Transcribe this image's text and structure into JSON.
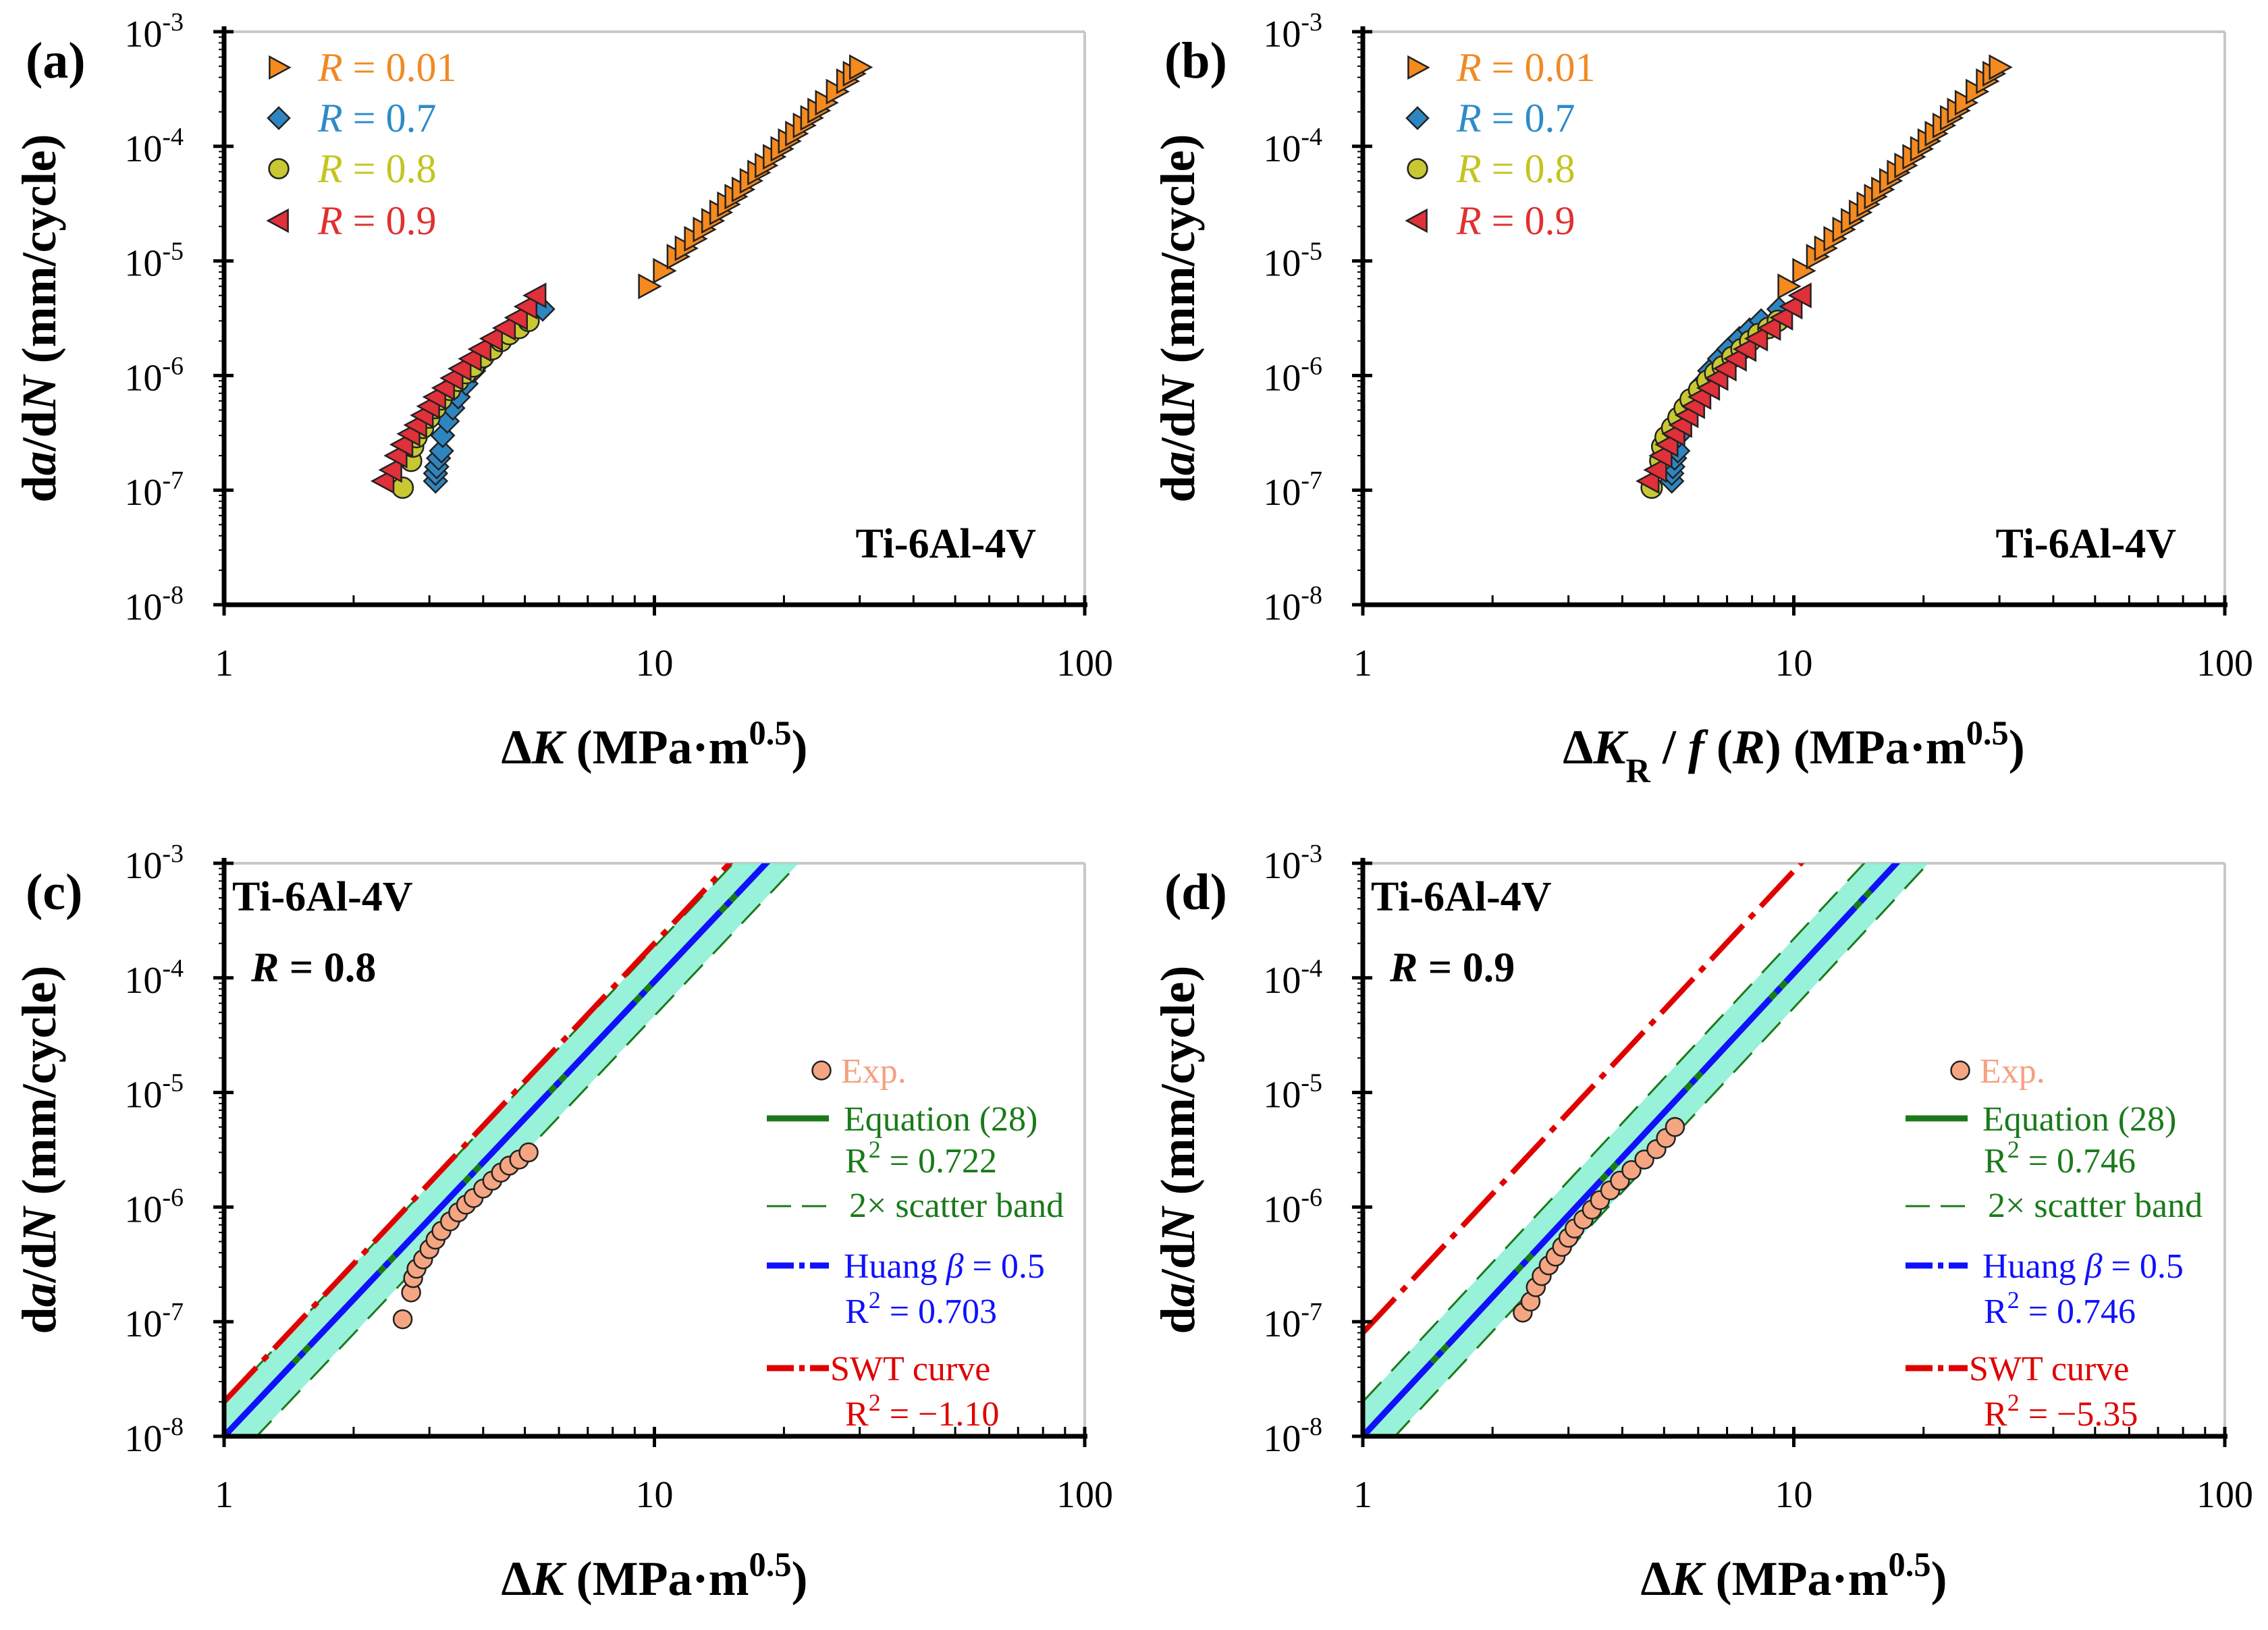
{
  "colors": {
    "r001": "#f58a1f",
    "r07": "#2e86c1",
    "r08": "#c8c832",
    "r09": "#e0303a",
    "r001_text": "#f08a24",
    "r07_text": "#2e8bc8",
    "r08_text": "#c4c420",
    "r09_text": "#e03030",
    "exp_fill": "#f5a582",
    "exp_text": "#f5a080",
    "eq28": "#1a7a1a",
    "huang": "#1010ff",
    "swt": "#e00000",
    "band": "#86eed2"
  },
  "chart_data": [
    {
      "id": "a",
      "type": "scatter",
      "panel_label": "(a)",
      "material": "Ti-6Al-4V",
      "xscale": "log",
      "yscale": "log",
      "xlim": [
        1,
        100
      ],
      "ylim": [
        1e-08,
        0.001
      ],
      "x_ticks": [
        "1",
        "10",
        "100"
      ],
      "y_tick_exponents": [
        -8,
        -7,
        -6,
        -5,
        -4,
        -3
      ],
      "xlabel": [
        {
          "t": "Δ"
        },
        {
          "t": "K",
          "i": true
        },
        {
          "t": " (MPa·m"
        },
        {
          "t": "0.5",
          "sup": true
        },
        {
          "t": ")"
        }
      ],
      "ylabel": [
        {
          "t": "d"
        },
        {
          "t": "a",
          "i": true
        },
        {
          "t": "/d"
        },
        {
          "t": "N",
          "i": true
        },
        {
          "t": " (mm/cycle)"
        }
      ],
      "legend": [
        {
          "marker": "triangle-right",
          "color": "r001",
          "text_color": "r001_text",
          "var": "R",
          "label": " = 0.01"
        },
        {
          "marker": "diamond",
          "color": "r07",
          "text_color": "r07_text",
          "var": "R",
          "label": " = 0.7"
        },
        {
          "marker": "circle",
          "color": "r08",
          "text_color": "r08_text",
          "var": "R",
          "label": " = 0.8"
        },
        {
          "marker": "triangle-left",
          "color": "r09",
          "text_color": "r09_text",
          "var": "R",
          "label": " = 0.9"
        }
      ],
      "series": [
        {
          "name": "R = 0.01",
          "marker": "triangle-right",
          "color": "r001",
          "x": [
            9.7,
            10.5,
            11.3,
            11.8,
            12.4,
            13.0,
            13.6,
            14.2,
            14.8,
            15.4,
            16.0,
            16.7,
            17.4,
            18.1,
            18.9,
            19.7,
            20.5,
            21.3,
            22.2,
            23.1,
            24.0,
            25.0,
            26.5,
            28.0,
            29.0,
            30.0
          ],
          "y": [
            6e-06,
            8.2e-06,
            1.09e-05,
            1.29e-05,
            1.56e-05,
            1.88e-05,
            2.24e-05,
            2.65e-05,
            3.12e-05,
            3.64e-05,
            4.2e-05,
            5e-05,
            5.9e-05,
            6.8e-05,
            8.1e-05,
            9.5e-05,
            0.000111,
            0.000129,
            0.000152,
            0.000177,
            0.000205,
            0.00024,
            0.0003,
            0.00037,
            0.00043,
            0.00049
          ]
        },
        {
          "name": "R = 0.7",
          "marker": "diamond",
          "color": "r07",
          "x": [
            3.1,
            3.1,
            3.12,
            3.15,
            3.2,
            3.22,
            3.3,
            3.4,
            3.5,
            3.65,
            3.8,
            4.0,
            4.2,
            4.45,
            4.7,
            5.0,
            5.5
          ],
          "y": [
            1.2e-07,
            1.4e-07,
            1.6e-07,
            1.9e-07,
            2.2e-07,
            3e-07,
            4e-07,
            5.2e-07,
            6.5e-07,
            8.5e-07,
            1.1e-06,
            1.4e-06,
            1.7e-06,
            2.1e-06,
            2.5e-06,
            3e-06,
            3.8e-06
          ]
        },
        {
          "name": "R = 0.8",
          "marker": "circle",
          "color": "r08",
          "x": [
            2.6,
            2.72,
            2.75,
            2.8,
            2.9,
            3.0,
            3.1,
            3.2,
            3.35,
            3.5,
            3.65,
            3.8,
            4.0,
            4.2,
            4.4,
            4.6,
            4.85,
            5.1
          ],
          "y": [
            1.05e-07,
            1.8e-07,
            2.4e-07,
            2.9e-07,
            3.5e-07,
            4.3e-07,
            5.2e-07,
            6.2e-07,
            7.5e-07,
            9e-07,
            1.05e-06,
            1.2e-06,
            1.45e-06,
            1.7e-06,
            2e-06,
            2.3e-06,
            2.6e-06,
            3e-06
          ]
        },
        {
          "name": "R = 0.9",
          "marker": "triangle-left",
          "color": "r09",
          "x": [
            2.35,
            2.45,
            2.52,
            2.6,
            2.7,
            2.8,
            2.9,
            3.0,
            3.1,
            3.25,
            3.4,
            3.55,
            3.75,
            3.95,
            4.2,
            4.5,
            4.8,
            5.05,
            5.3
          ],
          "y": [
            1.2e-07,
            1.5e-07,
            2e-07,
            2.5e-07,
            3.1e-07,
            3.7e-07,
            4.5e-07,
            5.4e-07,
            6.5e-07,
            7.8e-07,
            9.5e-07,
            1.15e-06,
            1.4e-06,
            1.7e-06,
            2.1e-06,
            2.6e-06,
            3.2e-06,
            4e-06,
            5e-06
          ]
        }
      ]
    },
    {
      "id": "b",
      "type": "scatter",
      "panel_label": "(b)",
      "material": "Ti-6Al-4V",
      "xscale": "log",
      "yscale": "log",
      "xlim": [
        1,
        100
      ],
      "ylim": [
        1e-08,
        0.001
      ],
      "x_ticks": [
        "1",
        "10",
        "100"
      ],
      "y_tick_exponents": [
        -8,
        -7,
        -6,
        -5,
        -4,
        -3
      ],
      "xlabel": [
        {
          "t": "Δ"
        },
        {
          "t": "K",
          "i": true
        },
        {
          "t": "R",
          "sub": true
        },
        {
          "t": " / "
        },
        {
          "t": "f",
          "i": true
        },
        {
          "t": " ("
        },
        {
          "t": "R",
          "i": true
        },
        {
          "t": ") (MPa·m"
        },
        {
          "t": "0.5",
          "sup": true
        },
        {
          "t": ")"
        }
      ],
      "ylabel": [
        {
          "t": "d"
        },
        {
          "t": "a",
          "i": true
        },
        {
          "t": "/d"
        },
        {
          "t": "N",
          "i": true
        },
        {
          "t": " (mm/cycle)"
        }
      ],
      "legend": [
        {
          "marker": "triangle-right",
          "color": "r001",
          "text_color": "r001_text",
          "var": "R",
          "label": " = 0.01"
        },
        {
          "marker": "diamond",
          "color": "r07",
          "text_color": "r07_text",
          "var": "R",
          "label": " = 0.7"
        },
        {
          "marker": "circle",
          "color": "r08",
          "text_color": "r08_text",
          "var": "R",
          "label": " = 0.8"
        },
        {
          "marker": "triangle-left",
          "color": "r09",
          "text_color": "r09_text",
          "var": "R",
          "label": " = 0.9"
        }
      ],
      "series": [
        {
          "name": "R = 0.01",
          "marker": "triangle-right",
          "color": "r001",
          "x": [
            9.7,
            10.5,
            11.3,
            11.8,
            12.4,
            13.0,
            13.6,
            14.2,
            14.8,
            15.4,
            16.0,
            16.7,
            17.4,
            18.1,
            18.9,
            19.7,
            20.5,
            21.3,
            22.2,
            23.1,
            24.0,
            25.0,
            26.5,
            28.0,
            29.0,
            30.0
          ],
          "y": [
            6e-06,
            8.2e-06,
            1.09e-05,
            1.29e-05,
            1.56e-05,
            1.88e-05,
            2.24e-05,
            2.65e-05,
            3.12e-05,
            3.64e-05,
            4.2e-05,
            5e-05,
            5.9e-05,
            6.8e-05,
            8.1e-05,
            9.5e-05,
            0.000111,
            0.000129,
            0.000152,
            0.000177,
            0.000205,
            0.00024,
            0.0003,
            0.00037,
            0.00043,
            0.00049
          ]
        },
        {
          "name": "R = 0.7",
          "marker": "diamond",
          "color": "r07",
          "x": [
            5.21,
            5.21,
            5.24,
            5.29,
            5.38,
            5.41,
            5.54,
            5.71,
            5.88,
            6.13,
            6.38,
            6.72,
            7.06,
            7.48,
            7.9,
            8.4,
            9.24
          ],
          "y": [
            1.2e-07,
            1.4e-07,
            1.6e-07,
            1.9e-07,
            2.2e-07,
            3e-07,
            4e-07,
            5.2e-07,
            6.5e-07,
            8.5e-07,
            1.1e-06,
            1.4e-06,
            1.7e-06,
            2.1e-06,
            2.5e-06,
            3e-06,
            3.8e-06
          ]
        },
        {
          "name": "R = 0.8",
          "marker": "circle",
          "color": "r08",
          "x": [
            4.68,
            4.9,
            4.95,
            5.04,
            5.22,
            5.4,
            5.58,
            5.76,
            6.03,
            6.3,
            6.57,
            6.84,
            7.2,
            7.56,
            7.92,
            8.28,
            8.73,
            9.18
          ],
          "y": [
            1.05e-07,
            1.8e-07,
            2.4e-07,
            2.9e-07,
            3.5e-07,
            4.3e-07,
            5.2e-07,
            6.2e-07,
            7.5e-07,
            9e-07,
            1.05e-06,
            1.2e-06,
            1.45e-06,
            1.7e-06,
            2e-06,
            2.3e-06,
            2.6e-06,
            3e-06
          ]
        },
        {
          "name": "R = 0.9",
          "marker": "triangle-left",
          "color": "r09",
          "x": [
            4.61,
            4.8,
            4.94,
            5.1,
            5.29,
            5.49,
            5.68,
            5.88,
            6.08,
            6.37,
            6.66,
            6.96,
            7.35,
            7.74,
            8.23,
            8.82,
            9.41,
            9.9,
            10.39
          ],
          "y": [
            1.2e-07,
            1.5e-07,
            2e-07,
            2.5e-07,
            3.1e-07,
            3.7e-07,
            4.5e-07,
            5.4e-07,
            6.5e-07,
            7.8e-07,
            9.5e-07,
            1.15e-06,
            1.4e-06,
            1.7e-06,
            2.1e-06,
            2.6e-06,
            3.2e-06,
            4e-06,
            5e-06
          ]
        }
      ]
    },
    {
      "id": "c",
      "type": "line",
      "panel_label": "(c)",
      "material": "Ti-6Al-4V",
      "ratio": {
        "var": "R",
        "label": " = 0.8"
      },
      "xscale": "log",
      "yscale": "log",
      "xlim": [
        1,
        100
      ],
      "ylim": [
        1e-08,
        0.001
      ],
      "x_ticks": [
        "1",
        "10",
        "100"
      ],
      "y_tick_exponents": [
        -8,
        -7,
        -6,
        -5,
        -4,
        -3
      ],
      "xlabel": [
        {
          "t": "Δ"
        },
        {
          "t": "K",
          "i": true
        },
        {
          "t": " (MPa·m"
        },
        {
          "t": "0.5",
          "sup": true
        },
        {
          "t": ")"
        }
      ],
      "ylabel": [
        {
          "t": "d"
        },
        {
          "t": "a",
          "i": true
        },
        {
          "t": "/d"
        },
        {
          "t": "N",
          "i": true
        },
        {
          "t": " (mm/cycle)"
        }
      ],
      "exp": {
        "label": "Exp.",
        "x": [
          2.6,
          2.72,
          2.75,
          2.8,
          2.9,
          3.0,
          3.1,
          3.2,
          3.35,
          3.5,
          3.65,
          3.8,
          4.0,
          4.2,
          4.4,
          4.6,
          4.85,
          5.1
        ],
        "y": [
          1.05e-07,
          1.8e-07,
          2.4e-07,
          2.9e-07,
          3.5e-07,
          4.3e-07,
          5.2e-07,
          6.2e-07,
          7.5e-07,
          9e-07,
          1.05e-06,
          1.2e-06,
          1.45e-06,
          1.7e-06,
          2e-06,
          2.3e-06,
          2.6e-06,
          3e-06
        ]
      },
      "models": {
        "eq28": {
          "label": "Equation (28)",
          "r2": "R",
          "r2_sup": "2",
          "r2_value": " = 0.722",
          "C": 1e-08,
          "m": 3.97
        },
        "band": {
          "label": "2× scatter band",
          "factor": 2
        },
        "huang": {
          "label_pre": "Huang ",
          "label_beta": "β",
          "label_post": " = 0.5",
          "r2": "R",
          "r2_sup": "2",
          "r2_value": " = 0.703",
          "C": 1e-08,
          "m": 3.97
        },
        "swt": {
          "label": "SWT curve",
          "r2": "R",
          "r2_sup": "2",
          "r2_value": " = −1.10",
          "C": 2e-08,
          "m": 4.0
        }
      }
    },
    {
      "id": "d",
      "type": "line",
      "panel_label": "(d)",
      "material": "Ti-6Al-4V",
      "ratio": {
        "var": "R",
        "label": " = 0.9"
      },
      "xscale": "log",
      "yscale": "log",
      "xlim": [
        1,
        100
      ],
      "ylim": [
        1e-08,
        0.001
      ],
      "x_ticks": [
        "1",
        "10",
        "100"
      ],
      "y_tick_exponents": [
        -8,
        -7,
        -6,
        -5,
        -4,
        -3
      ],
      "xlabel": [
        {
          "t": "Δ"
        },
        {
          "t": "K",
          "i": true
        },
        {
          "t": " (MPa·m"
        },
        {
          "t": "0.5",
          "sup": true
        },
        {
          "t": ")"
        }
      ],
      "ylabel": [
        {
          "t": "d"
        },
        {
          "t": "a",
          "i": true
        },
        {
          "t": "/d"
        },
        {
          "t": "N",
          "i": true
        },
        {
          "t": " (mm/cycle)"
        }
      ],
      "exp": {
        "label": "Exp.",
        "x": [
          2.35,
          2.45,
          2.52,
          2.6,
          2.7,
          2.8,
          2.9,
          3.0,
          3.1,
          3.25,
          3.4,
          3.55,
          3.75,
          3.95,
          4.2,
          4.5,
          4.8,
          5.05,
          5.3
        ],
        "y": [
          1.2e-07,
          1.5e-07,
          2e-07,
          2.5e-07,
          3.1e-07,
          3.7e-07,
          4.5e-07,
          5.4e-07,
          6.5e-07,
          7.8e-07,
          9.5e-07,
          1.15e-06,
          1.4e-06,
          1.7e-06,
          2.1e-06,
          2.6e-06,
          3.2e-06,
          4e-06,
          5e-06
        ]
      },
      "models": {
        "eq28": {
          "label": "Equation (28)",
          "r2": "R",
          "r2_sup": "2",
          "r2_value": " = 0.746",
          "C": 1e-08,
          "m": 4.04
        },
        "band": {
          "label": "2× scatter band",
          "factor": 2
        },
        "huang": {
          "label_pre": "Huang ",
          "label_beta": "β",
          "label_post": " = 0.5",
          "r2": "R",
          "r2_sup": "2",
          "r2_value": " = 0.746",
          "C": 1e-08,
          "m": 4.04
        },
        "swt": {
          "label": "SWT curve",
          "r2": "R",
          "r2_sup": "2",
          "r2_value": " = −5.35",
          "C": 8e-08,
          "m": 4.03
        }
      }
    }
  ]
}
